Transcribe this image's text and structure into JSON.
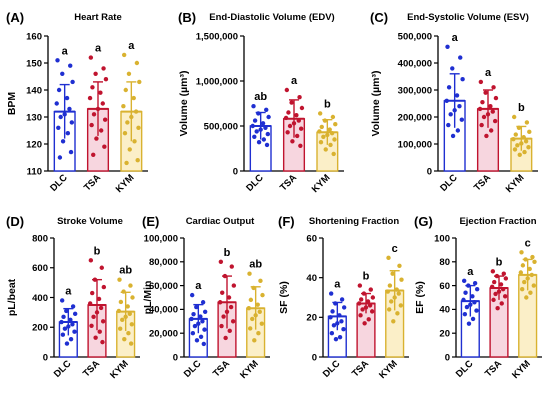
{
  "figure": {
    "background": "#ffffff"
  },
  "group_colors": {
    "DLC": "#1f2fd1",
    "TSA": "#c0142f",
    "KYM": "#d9b230"
  },
  "group_fills": {
    "DLC": "#ffffff",
    "TSA": "#f7d6df",
    "KYM": "#fbefc8"
  },
  "chart_data": [
    {
      "panel": "(A)",
      "title": "Heart Rate",
      "type": "bar",
      "ylabel": "BPM",
      "ylim": [
        110,
        160
      ],
      "yticks": [
        110,
        120,
        130,
        140,
        150,
        160
      ],
      "ytick_labels": [
        "110",
        "120",
        "130",
        "140",
        "150",
        "160"
      ],
      "categories": [
        "DLC",
        "TSA",
        "KYM"
      ],
      "values": [
        132,
        133,
        132
      ],
      "sd": [
        10,
        10,
        11
      ],
      "letters": [
        "a",
        "a",
        "a"
      ],
      "points": [
        [
          151,
          149,
          146,
          143,
          140,
          137,
          135,
          133,
          131,
          130,
          128,
          126,
          124,
          121,
          117,
          115
        ],
        [
          152,
          148,
          146,
          144,
          141,
          139,
          137,
          135,
          133,
          131,
          129,
          127,
          125,
          122,
          119,
          116
        ],
        [
          153,
          150,
          146,
          143,
          140,
          137,
          134,
          132,
          130,
          128,
          126,
          124,
          121,
          118,
          114,
          113
        ]
      ]
    },
    {
      "panel": "(B)",
      "title": "End-Diastolic Volume (EDV)",
      "type": "bar",
      "ylabel": "Volume (µm³)",
      "ylim": [
        0,
        1500000
      ],
      "yticks": [
        0,
        500000,
        1000000,
        1500000
      ],
      "ytick_labels": [
        "0",
        "500,000",
        "1,000,000",
        "1,500,000"
      ],
      "categories": [
        "DLC",
        "TSA",
        "KYM"
      ],
      "values": [
        500000,
        580000,
        430000
      ],
      "sd": [
        150000,
        210000,
        140000
      ],
      "letters": [
        "ab",
        "a",
        "b"
      ],
      "points": [
        [
          720000,
          680000,
          640000,
          600000,
          560000,
          530000,
          500000,
          480000,
          460000,
          440000,
          410000,
          380000,
          350000,
          320000,
          290000
        ],
        [
          900000,
          820000,
          760000,
          700000,
          650000,
          620000,
          590000,
          560000,
          530000,
          500000,
          470000,
          430000,
          390000,
          330000,
          280000
        ],
        [
          640000,
          600000,
          560000,
          520000,
          490000,
          460000,
          440000,
          420000,
          400000,
          380000,
          350000,
          320000,
          290000,
          240000,
          190000
        ]
      ]
    },
    {
      "panel": "(C)",
      "title": "End-Systolic Volume (ESV)",
      "type": "bar",
      "ylabel": "Volume (µm³)",
      "ylim": [
        0,
        500000
      ],
      "yticks": [
        0,
        100000,
        200000,
        300000,
        400000,
        500000
      ],
      "ytick_labels": [
        "0",
        "100,000",
        "200,000",
        "300,000",
        "400,000",
        "500,000"
      ],
      "categories": [
        "DLC",
        "TSA",
        "KYM"
      ],
      "values": [
        260000,
        230000,
        120000
      ],
      "sd": [
        100000,
        70000,
        45000
      ],
      "letters": [
        "a",
        "a",
        "b"
      ],
      "points": [
        [
          460000,
          420000,
          380000,
          340000,
          310000,
          280000,
          260000,
          240000,
          225000,
          210000,
          190000,
          170000,
          150000,
          130000
        ],
        [
          330000,
          310000,
          290000,
          270000,
          255000,
          240000,
          230000,
          220000,
          210000,
          200000,
          185000,
          170000,
          150000,
          130000
        ],
        [
          200000,
          180000,
          160000,
          145000,
          135000,
          125000,
          118000,
          110000,
          102000,
          95000,
          88000,
          80000,
          70000,
          60000
        ]
      ]
    },
    {
      "panel": "(D)",
      "title": "Stroke Volume",
      "type": "bar",
      "ylabel": "pL/beat",
      "ylim": [
        0,
        800
      ],
      "yticks": [
        0,
        200,
        400,
        600,
        800
      ],
      "ytick_labels": [
        "0",
        "200",
        "400",
        "600",
        "800"
      ],
      "categories": [
        "DLC",
        "TSA",
        "KYM"
      ],
      "values": [
        235,
        350,
        305
      ],
      "sd": [
        90,
        170,
        130
      ],
      "letters": [
        "a",
        "b",
        "ab"
      ],
      "points": [
        [
          380,
          340,
          310,
          290,
          270,
          250,
          235,
          220,
          205,
          190,
          170,
          150,
          120,
          90
        ],
        [
          650,
          600,
          520,
          470,
          430,
          390,
          360,
          330,
          300,
          270,
          240,
          210,
          170,
          130,
          100
        ],
        [
          520,
          480,
          440,
          400,
          370,
          340,
          310,
          290,
          270,
          250,
          220,
          190,
          160,
          120,
          90
        ]
      ]
    },
    {
      "panel": "(E)",
      "title": "Cardiac Output",
      "type": "bar",
      "ylabel": "pL/Min",
      "ylim": [
        0,
        100000
      ],
      "yticks": [
        0,
        20000,
        40000,
        60000,
        80000,
        100000
      ],
      "ytick_labels": [
        "0",
        "20,000",
        "40,000",
        "60,000",
        "80,000",
        "100,000"
      ],
      "categories": [
        "DLC",
        "TSA",
        "KYM"
      ],
      "values": [
        32000,
        46000,
        41000
      ],
      "sd": [
        12000,
        22000,
        18000
      ],
      "letters": [
        "a",
        "b",
        "ab"
      ],
      "points": [
        [
          52000,
          46000,
          42000,
          38000,
          36000,
          34000,
          32000,
          30000,
          28000,
          26000,
          23000,
          20000,
          17000,
          14000,
          11000
        ],
        [
          80000,
          76000,
          68000,
          60000,
          54000,
          50000,
          46000,
          42000,
          38000,
          34000,
          30000,
          26000,
          22000,
          16000
        ],
        [
          70000,
          64000,
          58000,
          52000,
          48000,
          44000,
          41000,
          38000,
          35000,
          32000,
          28000,
          24000,
          20000,
          14000
        ]
      ]
    },
    {
      "panel": "(F)",
      "title": "Shortening Fraction",
      "type": "bar",
      "ylabel": "SF (%)",
      "ylim": [
        0,
        60
      ],
      "yticks": [
        0,
        20,
        40,
        60
      ],
      "ytick_labels": [
        "0",
        "20",
        "40",
        "60"
      ],
      "categories": [
        "DLC",
        "TSA",
        "KYM"
      ],
      "values": [
        20.5,
        27,
        33.5
      ],
      "sd": [
        7,
        5,
        10
      ],
      "letters": [
        "a",
        "b",
        "c"
      ],
      "points": [
        [
          32,
          29,
          27,
          25,
          23,
          21,
          20,
          18,
          17,
          16,
          14,
          12,
          10,
          9
        ],
        [
          36,
          34,
          32,
          30,
          29,
          28,
          27,
          26,
          25,
          24,
          23,
          21,
          19,
          17
        ],
        [
          50,
          46,
          42,
          39,
          36,
          34,
          33,
          32,
          30,
          28,
          26,
          24,
          22,
          18
        ]
      ]
    },
    {
      "panel": "(G)",
      "title": "Ejection Fraction",
      "type": "bar",
      "ylabel": "EF (%)",
      "ylim": [
        0,
        100
      ],
      "yticks": [
        0,
        20,
        40,
        60,
        80,
        100
      ],
      "ytick_labels": [
        "0",
        "20",
        "40",
        "60",
        "80",
        "100"
      ],
      "categories": [
        "DLC",
        "TSA",
        "KYM"
      ],
      "values": [
        47,
        58,
        69
      ],
      "sd": [
        13,
        10,
        13
      ],
      "letters": [
        "a",
        "b",
        "c"
      ],
      "points": [
        [
          64,
          62,
          60,
          57,
          54,
          51,
          48,
          46,
          44,
          42,
          39,
          36,
          32,
          28
        ],
        [
          72,
          70,
          68,
          66,
          63,
          61,
          59,
          57,
          55,
          53,
          51,
          48,
          45,
          41
        ],
        [
          88,
          84,
          82,
          80,
          77,
          74,
          71,
          69,
          66,
          63,
          60,
          57,
          54,
          50
        ]
      ]
    }
  ]
}
